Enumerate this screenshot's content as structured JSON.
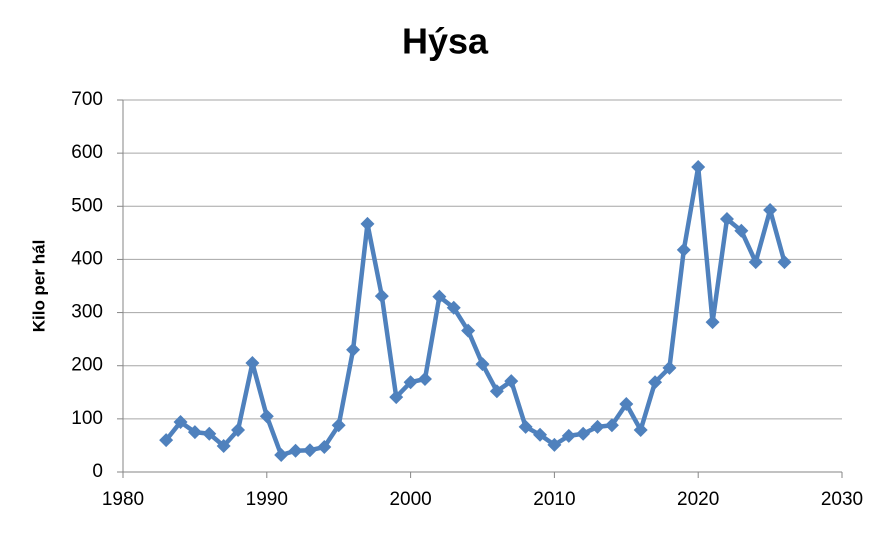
{
  "chart_data": {
    "type": "line",
    "title": "Hýsa",
    "y_label": "Kilo per hál",
    "x": [
      1983,
      1984,
      1985,
      1986,
      1987,
      1988,
      1989,
      1990,
      1991,
      1992,
      1993,
      1994,
      1995,
      1996,
      1997,
      1998,
      1999,
      2000,
      2001,
      2002,
      2003,
      2004,
      2005,
      2006,
      2007,
      2008,
      2009,
      2010,
      2011,
      2012,
      2013,
      2014,
      2015,
      2016,
      2017,
      2018,
      2019,
      2020,
      2021,
      2022,
      2023,
      2024,
      2025,
      2026
    ],
    "series": [
      {
        "color": "#4f81bd",
        "values": [
          60,
          94,
          75,
          72,
          49,
          79,
          205,
          105,
          32,
          40,
          41,
          47,
          88,
          230,
          467,
          331,
          141,
          169,
          175,
          330,
          309,
          266,
          203,
          152,
          171,
          85,
          70,
          51,
          68,
          72,
          85,
          88,
          128,
          79,
          169,
          196,
          418,
          574,
          282,
          476,
          454,
          395,
          493,
          395
        ]
      }
    ],
    "xlim": [
      1980,
      2030
    ],
    "xticks": [
      1980,
      1990,
      2000,
      2010,
      2020,
      2030
    ],
    "ylim": [
      0,
      700
    ],
    "yticks": [
      0,
      100,
      200,
      300,
      400,
      500,
      600,
      700
    ],
    "grid": true
  }
}
